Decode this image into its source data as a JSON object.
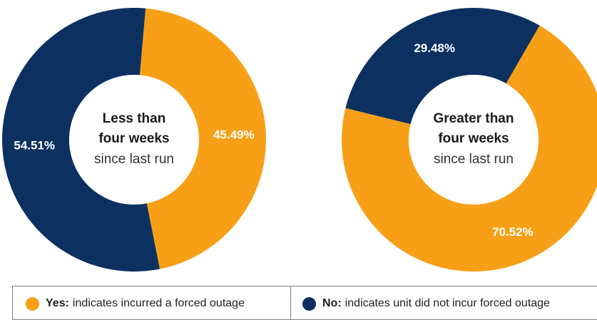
{
  "chart_data": [
    {
      "type": "pie",
      "variant": "donut",
      "center_label": {
        "line1": "Less than",
        "line2": "four weeks",
        "line3": "since last run"
      },
      "slices": [
        {
          "name": "Yes",
          "value": 45.49,
          "label": "45.49%",
          "color": "#f7a017"
        },
        {
          "name": "No",
          "value": 54.51,
          "label": "54.51%",
          "color": "#0c3161"
        }
      ]
    },
    {
      "type": "pie",
      "variant": "donut",
      "center_label": {
        "line1": "Greater than",
        "line2": "four weeks",
        "line3": "since last run"
      },
      "slices": [
        {
          "name": "Yes",
          "value": 70.52,
          "label": "70.52%",
          "color": "#f7a017"
        },
        {
          "name": "No",
          "value": 29.48,
          "label": "29.48%",
          "color": "#0c3161"
        }
      ]
    }
  ],
  "legend": {
    "yes": {
      "key": "Yes:",
      "text": "indicates incurred a forced outage",
      "color": "#f7a017"
    },
    "no": {
      "key": "No:",
      "text": "indicates unit did not incur forced outage",
      "color": "#0c3161"
    }
  }
}
